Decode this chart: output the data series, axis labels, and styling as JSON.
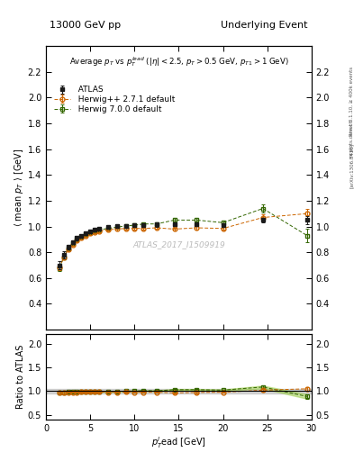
{
  "title_left": "13000 GeV pp",
  "title_right": "Underlying Event",
  "plot_title": "Average $p_T$ vs $p_T^{lead}$ ($|\\eta| < 2.5$, $p_T > 0.5$ GeV, $p_{T1} > 1$ GeV)",
  "ylabel_main": "$\\langle$ mean $p_T$ $\\rangle$ [GeV]",
  "ylabel_ratio": "Ratio to ATLAS",
  "xlabel": "$p_T^l$ead [GeV]",
  "watermark": "ATLAS_2017_I1509919",
  "right_label1": "Rivet 3.1.10, ≥ 400k events",
  "right_label2": "[arXiv:1306.3436]",
  "right_label3": "mcplots.cern.ch",
  "ylim_main": [
    0.2,
    2.4
  ],
  "ylim_ratio": [
    0.4,
    2.2
  ],
  "yticks_main": [
    0.4,
    0.6,
    0.8,
    1.0,
    1.2,
    1.4,
    1.6,
    1.8,
    2.0,
    2.2
  ],
  "yticks_ratio": [
    0.5,
    1.0,
    1.5,
    2.0
  ],
  "xlim": [
    0,
    30
  ],
  "xticks": [
    0,
    5,
    10,
    15,
    20,
    25,
    30
  ],
  "atlas_x": [
    1.5,
    2.0,
    2.5,
    3.0,
    3.5,
    4.0,
    4.5,
    5.0,
    5.5,
    6.0,
    7.0,
    8.0,
    9.0,
    10.0,
    11.0,
    12.5,
    14.5,
    17.0,
    20.0,
    24.5,
    29.5
  ],
  "atlas_y": [
    0.7,
    0.78,
    0.84,
    0.88,
    0.91,
    0.93,
    0.95,
    0.96,
    0.975,
    0.985,
    1.0,
    1.005,
    1.005,
    1.01,
    1.01,
    1.015,
    1.02,
    1.02,
    1.01,
    1.05,
    1.05
  ],
  "atlas_yerr": [
    0.03,
    0.025,
    0.02,
    0.015,
    0.015,
    0.012,
    0.012,
    0.01,
    0.01,
    0.01,
    0.01,
    0.01,
    0.01,
    0.01,
    0.01,
    0.015,
    0.015,
    0.015,
    0.015,
    0.02,
    0.03
  ],
  "herwig271_x": [
    1.5,
    2.0,
    2.5,
    3.0,
    3.5,
    4.0,
    4.5,
    5.0,
    5.5,
    6.0,
    7.0,
    8.0,
    9.0,
    10.0,
    11.0,
    12.5,
    14.5,
    17.0,
    20.0,
    24.5,
    29.5
  ],
  "herwig271_y": [
    0.68,
    0.76,
    0.82,
    0.86,
    0.89,
    0.91,
    0.93,
    0.945,
    0.955,
    0.965,
    0.975,
    0.98,
    0.985,
    0.985,
    0.985,
    0.99,
    0.98,
    0.99,
    0.985,
    1.07,
    1.1
  ],
  "herwig271_yerr": [
    0.015,
    0.012,
    0.01,
    0.01,
    0.01,
    0.008,
    0.008,
    0.008,
    0.008,
    0.008,
    0.008,
    0.008,
    0.008,
    0.008,
    0.008,
    0.01,
    0.01,
    0.012,
    0.012,
    0.025,
    0.04
  ],
  "herwig700_x": [
    1.5,
    2.0,
    2.5,
    3.0,
    3.5,
    4.0,
    4.5,
    5.0,
    5.5,
    6.0,
    7.0,
    8.0,
    9.0,
    10.0,
    11.0,
    12.5,
    14.5,
    17.0,
    20.0,
    24.5,
    29.5
  ],
  "herwig700_y": [
    0.675,
    0.76,
    0.83,
    0.87,
    0.9,
    0.92,
    0.94,
    0.955,
    0.965,
    0.975,
    0.985,
    0.995,
    1.005,
    1.01,
    1.02,
    1.02,
    1.05,
    1.05,
    1.03,
    1.14,
    0.93
  ],
  "herwig700_yerr": [
    0.018,
    0.014,
    0.012,
    0.01,
    0.01,
    0.009,
    0.009,
    0.008,
    0.008,
    0.008,
    0.008,
    0.008,
    0.009,
    0.009,
    0.01,
    0.012,
    0.014,
    0.014,
    0.015,
    0.03,
    0.05
  ],
  "atlas_color": "#1a1a1a",
  "herwig271_color": "#cc6600",
  "herwig700_color": "#336600",
  "atlas_band_color": "#bbbbbb",
  "herwig700_band_color": "#99cc44",
  "ratio_atlas_band": 0.05,
  "legend_atlas": "  ATLAS",
  "legend_h271": "  Herwig++ 2.7.1 default",
  "legend_h700": "  Herwig 7.0.0 default"
}
